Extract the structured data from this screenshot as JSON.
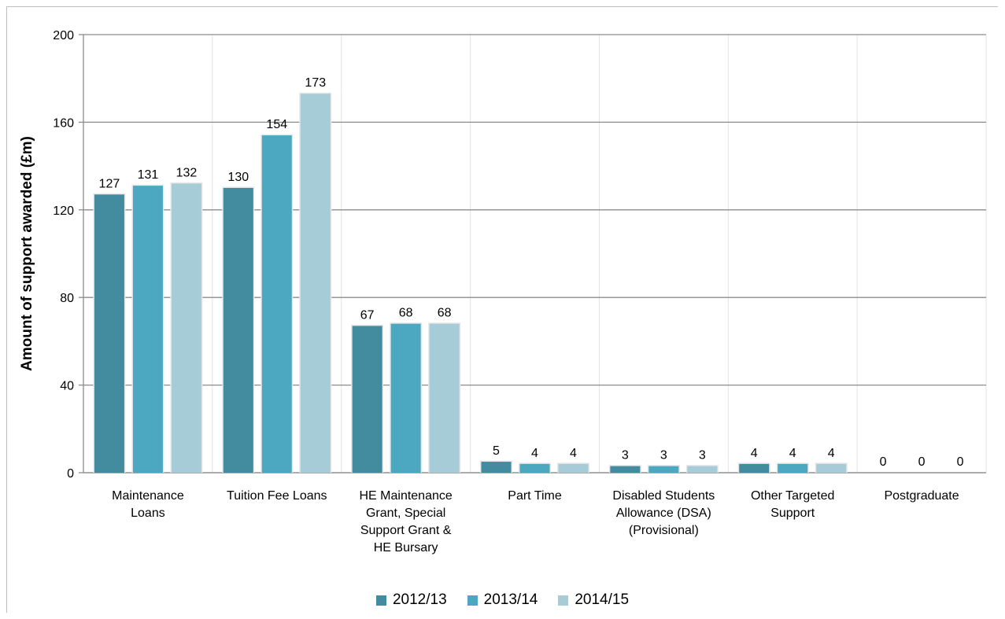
{
  "chart_data": {
    "type": "bar",
    "title": "",
    "xlabel": "",
    "ylabel": "Amount of support awarded (£m)",
    "ylim": [
      0,
      200
    ],
    "yticks": [
      0,
      40,
      80,
      120,
      160,
      200
    ],
    "grid": true,
    "legend_position": "bottom",
    "categories": [
      [
        "Maintenance",
        "Loans"
      ],
      [
        "Tuition Fee Loans"
      ],
      [
        "HE Maintenance",
        "Grant, Special",
        "Support Grant &",
        "HE Bursary"
      ],
      [
        "Part Time"
      ],
      [
        "Disabled Students",
        "Allowance (DSA)",
        "(Provisional)"
      ],
      [
        "Other Targeted",
        "Support"
      ],
      [
        "Postgraduate"
      ]
    ],
    "series": [
      {
        "name": "2012/13",
        "color": "#438B9E",
        "values": [
          127,
          130,
          67,
          5,
          3,
          4,
          0
        ]
      },
      {
        "name": "2013/14",
        "color": "#4BA8C0",
        "values": [
          131,
          154,
          68,
          4,
          3,
          4,
          0
        ]
      },
      {
        "name": "2014/15",
        "color": "#A6CCD8",
        "values": [
          132,
          173,
          68,
          4,
          3,
          4,
          0
        ]
      }
    ]
  }
}
